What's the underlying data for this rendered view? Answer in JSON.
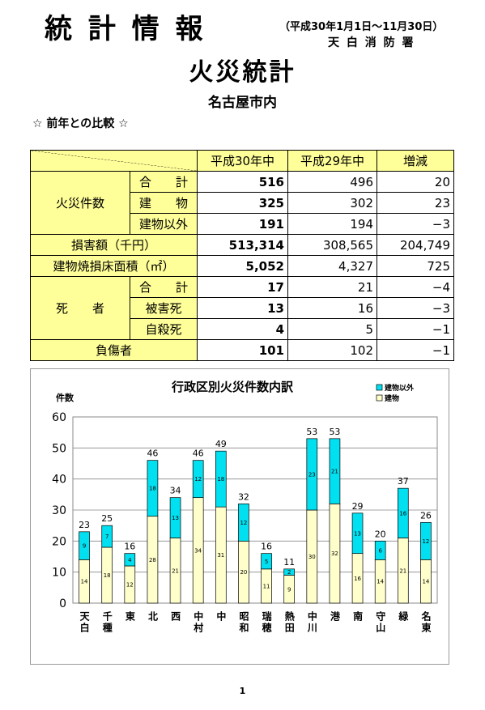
{
  "header": {
    "title": "統 計 情 報",
    "period": "（平成30年1月1日～11月30日）",
    "org": "天 白 消 防 署"
  },
  "main_title": "火災統計",
  "area": "名古屋市内",
  "section": "☆ 前年との比較 ☆",
  "table": {
    "columns": [
      "平成30年中",
      "平成29年中",
      "増減"
    ],
    "groups": [
      "火災件数",
      "損害額（千円）",
      "建物焼損床面積（㎡）",
      "死　　者",
      "負傷者"
    ],
    "sub_labels": [
      "合　　計",
      "建　　物",
      "建物以外",
      "合　　計",
      "被害死",
      "自殺死"
    ],
    "rows": [
      [
        "516",
        "496",
        "20"
      ],
      [
        "325",
        "302",
        "23"
      ],
      [
        "191",
        "194",
        "−3"
      ],
      [
        "513,314",
        "308,565",
        "204,749"
      ],
      [
        "5,052",
        "4,327",
        "725"
      ],
      [
        "17",
        "21",
        "−4"
      ],
      [
        "13",
        "16",
        "−3"
      ],
      [
        "4",
        "5",
        "−1"
      ],
      [
        "101",
        "102",
        "−1"
      ]
    ]
  },
  "chart_data": {
    "type": "bar",
    "stacked": true,
    "title": "行政区別火災件数内訳",
    "y_label": "件数",
    "categories": [
      "天白",
      "千種",
      "東",
      "北",
      "西",
      "中村",
      "中",
      "昭和",
      "瑞穂",
      "熱田",
      "中川",
      "港",
      "南",
      "守山",
      "緑",
      "名東"
    ],
    "series": [
      {
        "name": "建物",
        "color": "#ffffcc",
        "values": [
          14,
          18,
          12,
          28,
          21,
          34,
          31,
          20,
          11,
          9,
          30,
          32,
          16,
          14,
          21,
          14
        ]
      },
      {
        "name": "建物以外",
        "color": "#00e0f0",
        "values": [
          9,
          7,
          4,
          18,
          13,
          12,
          18,
          12,
          5,
          2,
          23,
          21,
          13,
          6,
          16,
          12
        ]
      }
    ],
    "totals": [
      23,
      25,
      16,
      46,
      34,
      46,
      49,
      32,
      16,
      11,
      53,
      53,
      29,
      20,
      37,
      26
    ],
    "ylim": [
      0,
      60
    ],
    "yticks": [
      0,
      10,
      20,
      30,
      40,
      50,
      60
    ],
    "grid": true,
    "legend": "top-right"
  },
  "page_number": "1"
}
